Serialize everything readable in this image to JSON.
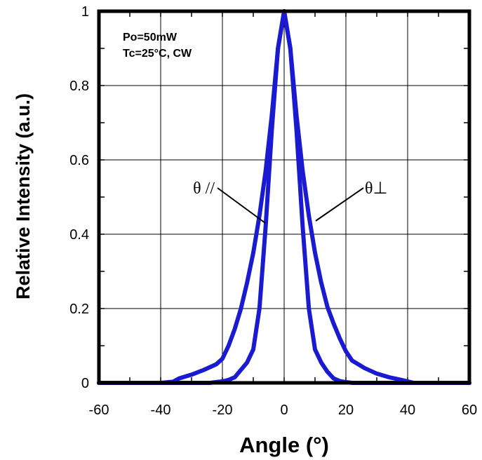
{
  "chart_data": {
    "type": "line",
    "xlabel": "Angle (°)",
    "ylabel": "Relative Intensity (a.u.)",
    "xlim": [
      -60,
      60
    ],
    "ylim": [
      0,
      1
    ],
    "xticks": [
      -60,
      -40,
      -20,
      0,
      20,
      40,
      60
    ],
    "yticks": [
      0,
      0.2,
      0.4,
      0.6,
      0.8,
      1
    ],
    "ytick_labels": [
      "0",
      "0.2",
      "0.4",
      "0.6",
      "0.8",
      "1"
    ],
    "grid": true,
    "line_color": "#1a1ad0",
    "annotations": [
      "Po=50mW",
      "Tc=25°C, CW"
    ],
    "series": [
      {
        "name": "θ //",
        "x": [
          -60,
          -40,
          -30,
          -24,
          -22,
          -20,
          -18,
          -16,
          -14,
          -12,
          -10,
          -8,
          -6,
          -4,
          -2,
          0,
          2,
          4,
          6,
          8,
          10,
          12,
          14,
          16,
          18,
          20,
          22,
          24,
          60
        ],
        "y": [
          0.0,
          0.0,
          0.0,
          0.0,
          0.002,
          0.004,
          0.008,
          0.015,
          0.035,
          0.055,
          0.09,
          0.2,
          0.42,
          0.68,
          0.9,
          1.0,
          0.9,
          0.68,
          0.42,
          0.2,
          0.09,
          0.055,
          0.03,
          0.012,
          0.005,
          0.002,
          0.0,
          0.0,
          0.0
        ]
      },
      {
        "name": "θ⊥",
        "x": [
          -60,
          -40,
          -36,
          -34,
          -30,
          -26,
          -22,
          -20,
          -18,
          -16,
          -14,
          -12,
          -10,
          -8,
          -6,
          -4,
          -2,
          0,
          2,
          4,
          6,
          8,
          10,
          12,
          14,
          16,
          18,
          20,
          22,
          26,
          30,
          34,
          38,
          40,
          42,
          60
        ],
        "y": [
          0.0,
          0.0,
          0.003,
          0.012,
          0.022,
          0.035,
          0.05,
          0.065,
          0.1,
          0.145,
          0.2,
          0.27,
          0.35,
          0.45,
          0.57,
          0.72,
          0.9,
          1.0,
          0.9,
          0.72,
          0.57,
          0.45,
          0.35,
          0.27,
          0.205,
          0.16,
          0.12,
          0.085,
          0.06,
          0.04,
          0.025,
          0.015,
          0.008,
          0.004,
          0.0,
          0.0
        ]
      }
    ]
  }
}
